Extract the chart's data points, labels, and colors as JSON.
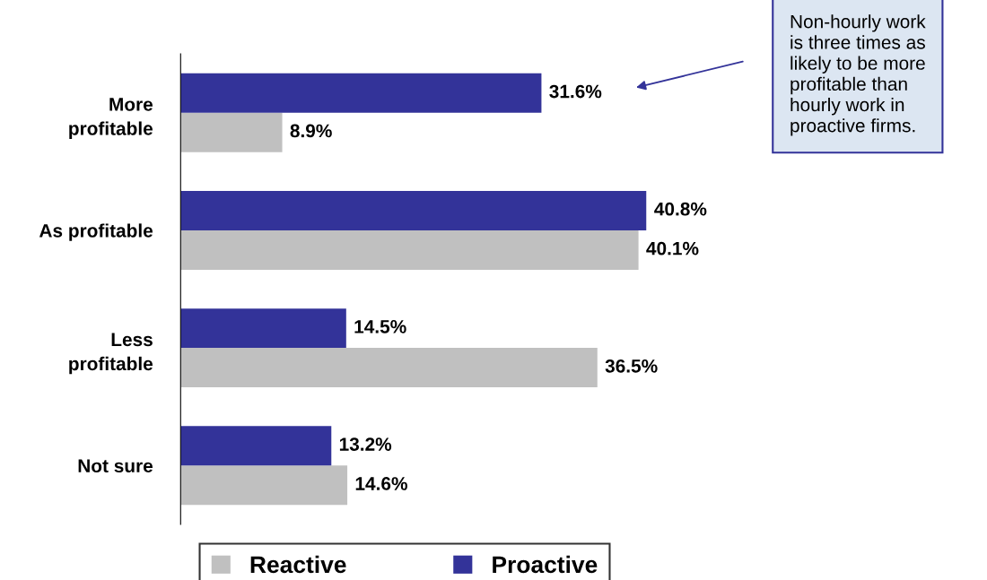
{
  "chart_data": {
    "type": "bar",
    "orientation": "horizontal",
    "relative": false,
    "categories": [
      "More profitable",
      "As profitable",
      "Less profitable",
      "Not sure"
    ],
    "series": [
      {
        "name": "Reactive",
        "color": "#c0c0c0",
        "values": [
          8.9,
          40.1,
          36.5,
          14.6
        ],
        "value_labels": [
          "8.9%",
          "40.1%",
          "36.5%",
          "14.6%"
        ]
      },
      {
        "name": "Proactive",
        "color": "#333399",
        "values": [
          31.6,
          40.8,
          14.5,
          13.2
        ],
        "value_labels": [
          "31.6%",
          "40.8%",
          "14.5%",
          "13.2%"
        ]
      }
    ],
    "tick_labels": "y",
    "grid": false,
    "legend": "bottom",
    "annotations": [
      "Non-hourly work\nis three times as\nlikely to be more\nprofitable than\nhourly work in\nproactive firms."
    ]
  }
}
